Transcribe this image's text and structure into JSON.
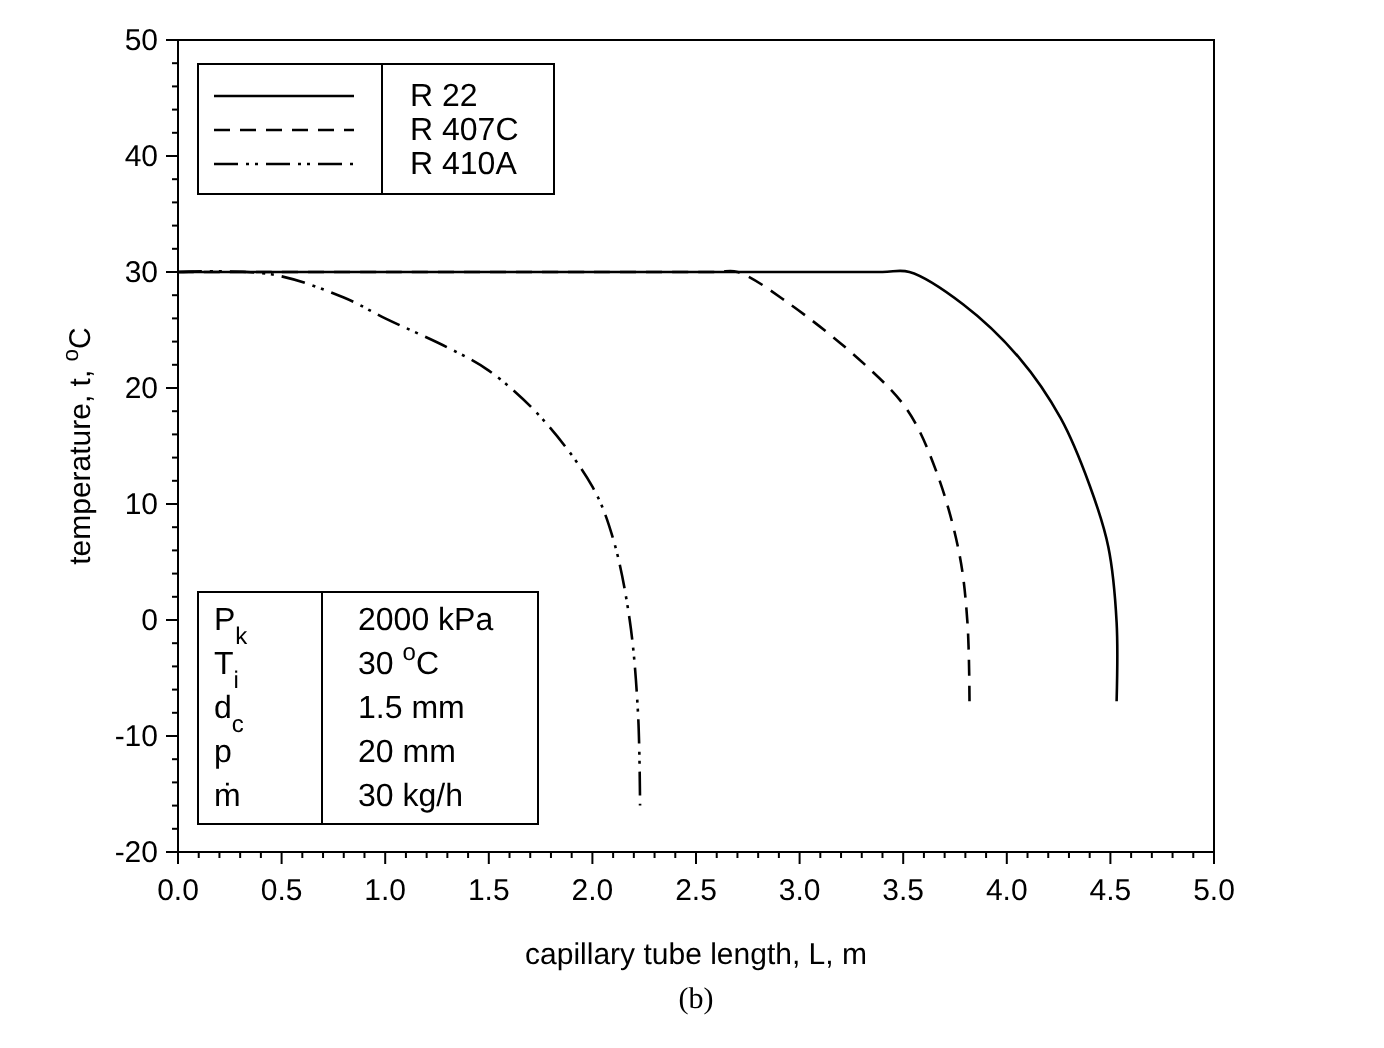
{
  "chart_data": {
    "type": "line",
    "xlabel": "capillary tube length, L, m",
    "ylabel": "temperature, t, $^{o}$C",
    "xlim": [
      0,
      5
    ],
    "xticks": [
      {
        "value": 0,
        "label": "0.0"
      },
      {
        "value": 0.5,
        "label": "0.5"
      },
      {
        "value": 1,
        "label": "1.0"
      },
      {
        "value": 1.5,
        "label": "1.5"
      },
      {
        "value": 2,
        "label": "2.0"
      },
      {
        "value": 2.5,
        "label": "2.5"
      },
      {
        "value": 3,
        "label": "3.0"
      },
      {
        "value": 3.5,
        "label": "3.5"
      },
      {
        "value": 4,
        "label": "4.0"
      },
      {
        "value": 4.5,
        "label": "4.5"
      },
      {
        "value": 5,
        "label": "5.0"
      }
    ],
    "ylim": [
      -20,
      50
    ],
    "yticks": [
      -20,
      -10,
      0,
      10,
      20,
      30,
      40,
      50
    ],
    "legend": "top left",
    "grid": false,
    "series": [
      {
        "name": "R 22",
        "color": "#000000",
        "line_style": "solid",
        "x": [
          0,
          1,
          2,
          3,
          3.4,
          3.53,
          3.79,
          4.06,
          4.26,
          4.4,
          4.49,
          4.53,
          4.53
        ],
        "values": [
          30,
          30,
          30,
          30,
          30,
          30,
          27.2,
          22.6,
          17.4,
          11.6,
          6.3,
          -0.2,
          -7
        ]
      },
      {
        "name": "R 407C",
        "color": "#000000",
        "line_style": "dashed",
        "x": [
          0,
          1,
          2,
          2.6,
          2.7,
          2.94,
          3.31,
          3.52,
          3.66,
          3.77,
          3.81,
          3.82
        ],
        "values": [
          30,
          30,
          30,
          30,
          30,
          27.4,
          22.1,
          18.1,
          12.8,
          5.8,
          -0.2,
          -7
        ]
      },
      {
        "name": "R 410A",
        "color": "#000000",
        "line_style": "dashdot",
        "x": [
          0,
          0.45,
          0.8,
          1,
          1.3,
          1.5,
          1.75,
          2,
          2.1,
          2.18,
          2.22,
          2.23
        ],
        "values": [
          30,
          29.8,
          27.8,
          26,
          23.5,
          21.5,
          17.5,
          11.5,
          7,
          0,
          -8,
          -16
        ]
      }
    ],
    "annotations": [
      "P$_{k}$",
      "2000 kPa",
      "T$_{i}$",
      "30 $^{o}$C",
      "d$_{c}$",
      "1.5 mm",
      "p",
      "20 mm",
      "ṁ",
      "30 kg/h",
      "(b)"
    ]
  }
}
